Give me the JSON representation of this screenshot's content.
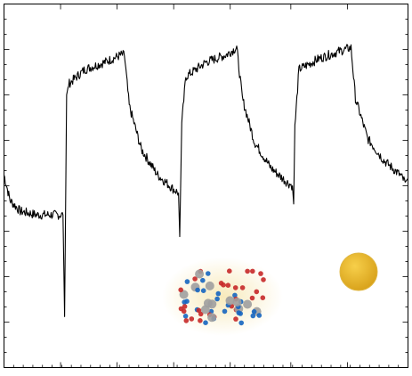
{
  "chart_data": {
    "type": "line",
    "title": "",
    "xlabel": "",
    "ylabel": "",
    "xlim": [
      0,
      100
    ],
    "ylim": [
      0,
      100
    ],
    "grid": false,
    "line_color": "#000000",
    "x_ticks": [
      0,
      14,
      28,
      42,
      56,
      71,
      85,
      100
    ],
    "series": [
      {
        "key": [
          [
            0.0,
            53
          ],
          [
            1.5,
            46
          ],
          [
            4.0,
            43
          ],
          [
            8.0,
            42
          ],
          [
            12.0,
            42
          ],
          [
            14.6,
            42
          ],
          [
            15.0,
            14
          ],
          [
            15.5,
            75
          ],
          [
            16.0,
            78
          ],
          [
            20.0,
            82
          ],
          [
            25.0,
            84
          ],
          [
            29.0,
            86
          ],
          [
            29.8,
            86
          ],
          [
            31.0,
            72
          ],
          [
            34.0,
            60
          ],
          [
            38.0,
            53
          ],
          [
            42.0,
            49
          ],
          [
            43.2,
            48
          ],
          [
            43.5,
            36
          ],
          [
            44.0,
            67
          ],
          [
            45.0,
            80
          ],
          [
            50.0,
            84
          ],
          [
            55.0,
            86
          ],
          [
            57.6,
            88
          ],
          [
            59.0,
            74
          ],
          [
            62.0,
            62
          ],
          [
            66.0,
            55
          ],
          [
            70.0,
            51
          ],
          [
            71.4,
            50
          ],
          [
            71.7,
            45
          ],
          [
            72.0,
            66
          ],
          [
            73.0,
            82
          ],
          [
            78.0,
            85
          ],
          [
            83.0,
            87
          ],
          [
            85.9,
            88
          ],
          [
            87.0,
            74
          ],
          [
            90.0,
            63
          ],
          [
            94.0,
            57
          ],
          [
            98.0,
            53
          ],
          [
            99.3,
            51
          ],
          [
            100.0,
            52
          ]
        ],
        "note_series_style": "noisy transient, 3 repeated cycles"
      }
    ]
  },
  "insets": {
    "crystal_cluster": {
      "colors": [
        "#c62828",
        "#1565c0",
        "#9e9e9e",
        "#f5e6b0"
      ]
    },
    "gold_sphere": {
      "color": "#e6b22a"
    }
  }
}
